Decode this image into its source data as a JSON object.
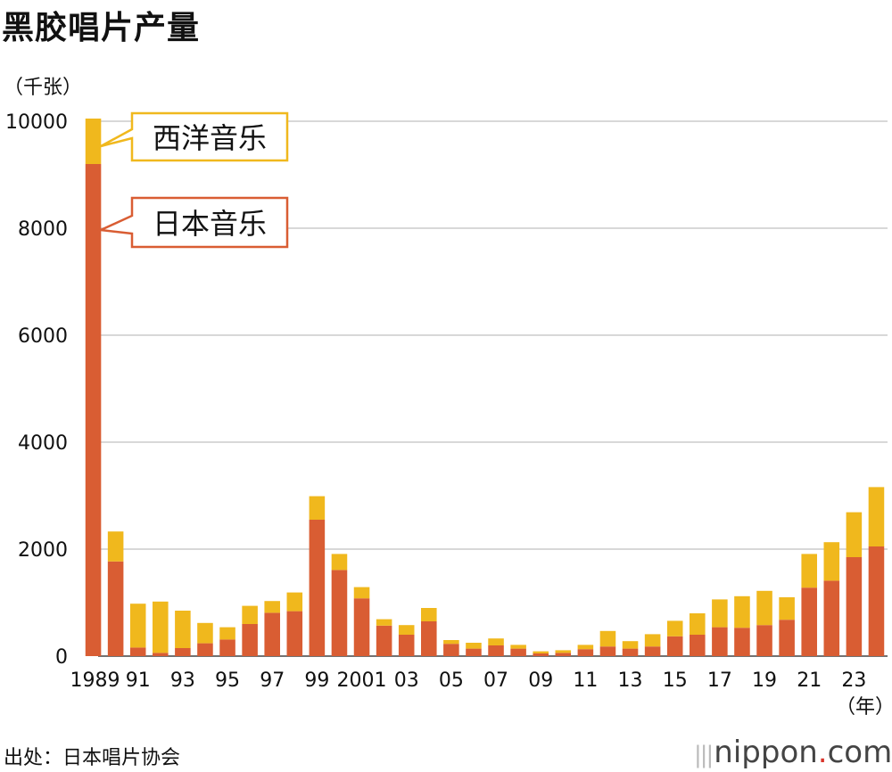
{
  "title": "黑胶唱片产量",
  "unit": "（千张）",
  "source": "出处：日本唱片协会",
  "logo_text": "nippon",
  "logo_suffix": "com",
  "colors": {
    "japanese": "#d95d33",
    "western": "#f0b81d",
    "grid": "#cccccc",
    "callout_bg": "#ffffff"
  },
  "chart_data": {
    "type": "bar",
    "stacked": true,
    "x": [
      1989,
      1990,
      1991,
      1992,
      1993,
      1994,
      1995,
      1996,
      1997,
      1998,
      1999,
      2000,
      2001,
      2002,
      2003,
      2004,
      2005,
      2006,
      2007,
      2008,
      2009,
      2010,
      2011,
      2012,
      2013,
      2014,
      2015,
      2016,
      2017,
      2018,
      2019,
      2020,
      2021,
      2022,
      2023,
      2024
    ],
    "x_tick_labels": [
      "1989",
      "91",
      "93",
      "95",
      "97",
      "99",
      "2001",
      "03",
      "05",
      "07",
      "09",
      "11",
      "13",
      "15",
      "17",
      "19",
      "21",
      "23"
    ],
    "x_unit": "（年）",
    "y_ticks": [
      "0",
      "2000",
      "4000",
      "6000",
      "8000",
      "10000"
    ],
    "ylim": [
      0,
      10000
    ],
    "grid": true,
    "series": [
      {
        "name": "日本音乐",
        "key": "japanese",
        "values": [
          9200,
          1770,
          160,
          60,
          150,
          240,
          310,
          600,
          810,
          840,
          2550,
          1610,
          1080,
          570,
          400,
          650,
          230,
          140,
          200,
          140,
          50,
          60,
          130,
          180,
          140,
          180,
          370,
          400,
          540,
          530,
          580,
          680,
          1280,
          1410,
          1850,
          2050
        ]
      },
      {
        "name": "西洋音乐",
        "key": "western",
        "values": [
          850,
          560,
          820,
          960,
          700,
          380,
          230,
          340,
          220,
          350,
          440,
          300,
          210,
          120,
          180,
          250,
          70,
          110,
          130,
          70,
          40,
          50,
          80,
          290,
          140,
          230,
          290,
          400,
          520,
          590,
          640,
          420,
          630,
          720,
          840,
          1110
        ]
      }
    ]
  }
}
